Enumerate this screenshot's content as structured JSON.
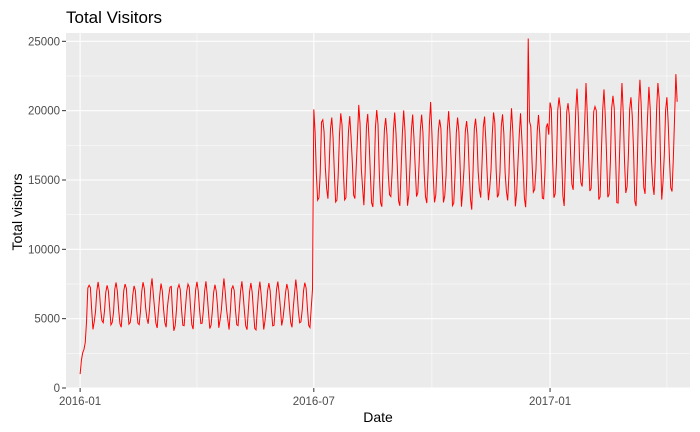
{
  "chart_data": {
    "type": "line",
    "title": "Total Visitors",
    "xlabel": "Date",
    "ylabel": "Total visitors",
    "x_range": [
      "2015-12-21",
      "2017-04-20"
    ],
    "ylim": [
      0,
      25600
    ],
    "x_ticks": [
      {
        "date": "2016-01-01",
        "label": "2016-01"
      },
      {
        "date": "2016-07-01",
        "label": "2016-07"
      },
      {
        "date": "2017-01-01",
        "label": "2017-01"
      }
    ],
    "y_ticks": [
      0,
      5000,
      10000,
      15000,
      20000,
      25000
    ],
    "grid": true,
    "series": [
      {
        "color": "#ff0000",
        "x": [
          "2016-01-01",
          "2016-06-30",
          "2016-07-01",
          "2017-04-10"
        ],
        "segments": [
          {
            "start": "2016-01-01",
            "end": "2016-06-30",
            "base": 6000,
            "amplitude": 1700,
            "period_days": 7,
            "ramp_from": 1000,
            "ramp_days": 6
          },
          {
            "start": "2016-07-01",
            "end": "2016-12-31",
            "base": 16500,
            "amplitude": 3400,
            "period_days": 7
          },
          {
            "start": "2017-01-01",
            "end": "2017-04-10",
            "base": 17500,
            "amplitude": 4300,
            "period_days": 7
          }
        ],
        "y_min": 1000,
        "y_max": 25200
      }
    ]
  },
  "colors": {
    "panel": "#ebebeb",
    "grid_major": "#ffffff",
    "line": "#ff0000"
  }
}
